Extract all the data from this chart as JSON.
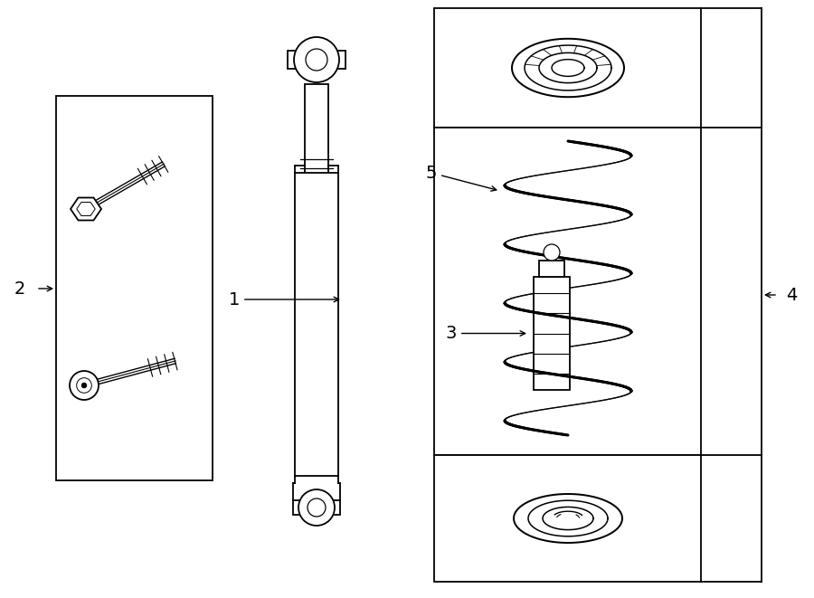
{
  "background_color": "#ffffff",
  "line_color": "#000000",
  "lw": 1.3,
  "label_fontsize": 14,
  "fig_w": 9.0,
  "fig_h": 6.61,
  "xlim": [
    0,
    9
  ],
  "ylim": [
    0,
    6.61
  ]
}
